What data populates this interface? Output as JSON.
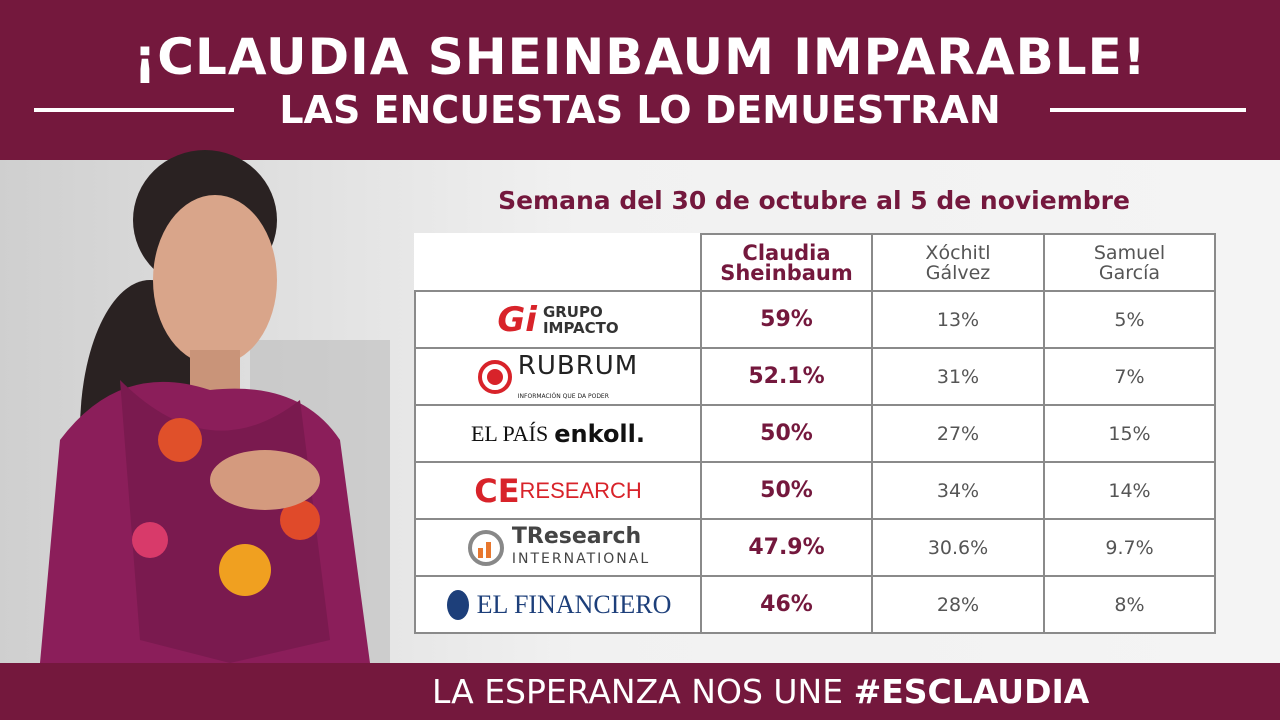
{
  "header": {
    "title": "¡CLAUDIA SHEINBAUM IMPARABLE!",
    "subtitle": "LAS ENCUESTAS LO DEMUESTRAN"
  },
  "table": {
    "caption": "Semana del 30 de octubre al 5 de noviembre",
    "columns": [
      [
        "Claudia",
        "Sheinbaum"
      ],
      [
        "Xóchitl",
        "Gálvez"
      ],
      [
        "Samuel",
        "García"
      ]
    ],
    "rows": [
      {
        "logo": [
          "Gi",
          "GRUPO",
          "IMPACTO"
        ],
        "values": [
          "59%",
          "13%",
          "5%"
        ]
      },
      {
        "logo": [
          "RUBRUM",
          "INFORMACIÓN QUE DA PODER"
        ],
        "values": [
          "52.1%",
          "31%",
          "7%"
        ]
      },
      {
        "logo": [
          "EL PAÍS",
          "enkoll."
        ],
        "values": [
          "50%",
          "27%",
          "15%"
        ]
      },
      {
        "logo": [
          "CE",
          "RESEARCH"
        ],
        "values": [
          "50%",
          "34%",
          "14%"
        ]
      },
      {
        "logo": [
          "TResearch",
          "INTERNATIONAL"
        ],
        "values": [
          "47.9%",
          "30.6%",
          "9.7%"
        ]
      },
      {
        "logo": [
          "EL FINANCIERO"
        ],
        "values": [
          "46%",
          "28%",
          "8%"
        ]
      }
    ]
  },
  "footer": {
    "text": "LA ESPERANZA NOS UNE",
    "hashtag": "#ESCLAUDIA"
  }
}
